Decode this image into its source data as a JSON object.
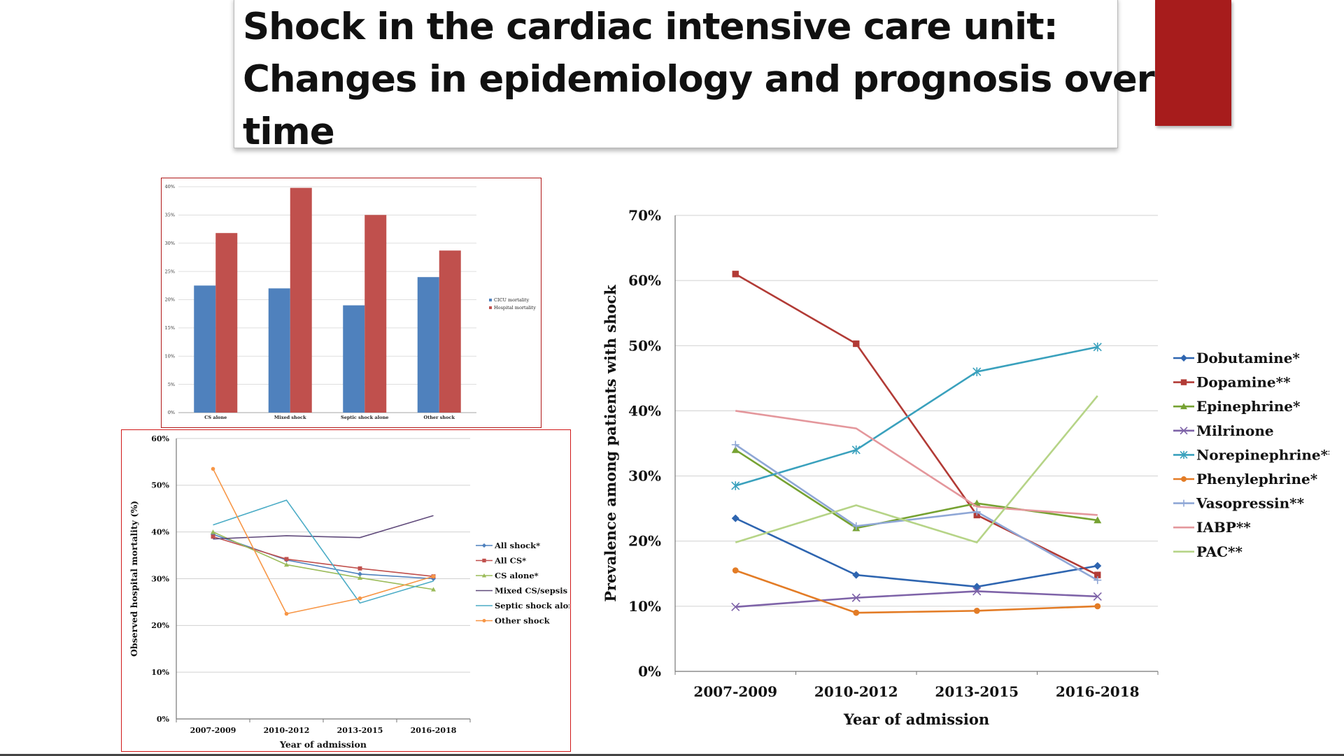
{
  "slide": {
    "title_lines": [
      "Shock in the cardiac intensive care unit:",
      "Changes in epidemiology and prognosis over",
      "time"
    ],
    "accent_color": "#a71c1c"
  },
  "chart_data": [
    {
      "id": "bar",
      "type": "bar",
      "categories": [
        "CS alone",
        "Mixed shock",
        "Septic shock alone",
        "Other shock"
      ],
      "series": [
        {
          "name": "CICU mortality",
          "color": "#4f81bd",
          "values": [
            22.5,
            22.0,
            19.0,
            24.0
          ]
        },
        {
          "name": "Hospital mortality",
          "color": "#c0504d",
          "values": [
            31.8,
            39.8,
            35.0,
            28.7
          ]
        }
      ],
      "ylim": [
        0,
        40
      ],
      "yticks": [
        "0%",
        "5%",
        "10%",
        "15%",
        "20%",
        "25%",
        "30%",
        "35%",
        "40%"
      ],
      "legend_position": "right",
      "grid": true
    },
    {
      "id": "mortality",
      "type": "line",
      "categories": [
        "2007-2009",
        "2010-2012",
        "2013-2015",
        "2016-2018"
      ],
      "xlabel": "Year of admission",
      "ylabel": "Observed hospital mortality (%)",
      "ylim": [
        0,
        60
      ],
      "yticks": [
        "0%",
        "10%",
        "20%",
        "30%",
        "40%",
        "50%",
        "60%"
      ],
      "legend_position": "right",
      "grid": true,
      "series": [
        {
          "name": "All shock*",
          "color": "#4f81bd",
          "marker": "diamond",
          "values": [
            39.5,
            34.0,
            31.0,
            30.0
          ]
        },
        {
          "name": "All CS*",
          "color": "#c0504d",
          "marker": "square",
          "values": [
            39.0,
            34.2,
            32.2,
            30.5
          ]
        },
        {
          "name": "CS alone*",
          "color": "#9bbb59",
          "marker": "triangle",
          "values": [
            40.0,
            33.0,
            30.2,
            27.7
          ]
        },
        {
          "name": "Mixed CS/sepsis",
          "color": "#604a7b",
          "marker": "none",
          "values": [
            38.5,
            39.2,
            38.8,
            43.5
          ]
        },
        {
          "name": "Septic shock alone",
          "color": "#4bacc6",
          "marker": "none",
          "values": [
            41.5,
            46.8,
            24.8,
            29.5
          ]
        },
        {
          "name": "Other shock",
          "color": "#f79646",
          "marker": "circle",
          "values": [
            53.5,
            22.5,
            25.8,
            30.5
          ]
        }
      ]
    },
    {
      "id": "prevalence",
      "type": "line",
      "categories": [
        "2007-2009",
        "2010-2012",
        "2013-2015",
        "2016-2018"
      ],
      "xlabel": "Year of admission",
      "ylabel": "Prevalence among patients with shock",
      "ylim": [
        0,
        70
      ],
      "yticks": [
        "0%",
        "10%",
        "20%",
        "30%",
        "40%",
        "50%",
        "60%",
        "70%"
      ],
      "legend_position": "right",
      "grid": true,
      "series": [
        {
          "name": "Dobutamine*",
          "color": "#2e65b0",
          "marker": "diamond",
          "values": [
            23.5,
            14.8,
            13.0,
            16.2
          ]
        },
        {
          "name": "Dopamine**",
          "color": "#b23b36",
          "marker": "square",
          "values": [
            61.0,
            50.3,
            24.0,
            14.8
          ]
        },
        {
          "name": "Epinephrine*",
          "color": "#76a232",
          "marker": "triangle",
          "values": [
            34.0,
            22.0,
            25.8,
            23.2
          ]
        },
        {
          "name": "Milrinone",
          "color": "#7e63a8",
          "marker": "x",
          "values": [
            9.9,
            11.3,
            12.3,
            11.5
          ]
        },
        {
          "name": "Norepinephrine**",
          "color": "#3aa1bd",
          "marker": "star",
          "values": [
            28.5,
            34.0,
            46.0,
            49.8
          ]
        },
        {
          "name": "Phenylephrine*",
          "color": "#e37c26",
          "marker": "circle",
          "values": [
            15.5,
            9.0,
            9.3,
            10.0
          ]
        },
        {
          "name": "Vasopressin**",
          "color": "#8fa7d6",
          "marker": "plus",
          "values": [
            34.8,
            22.3,
            24.5,
            14.0
          ]
        },
        {
          "name": "IABP**",
          "color": "#e4979c",
          "marker": "none",
          "values": [
            40.0,
            37.3,
            25.3,
            24.0
          ]
        },
        {
          "name": "PAC**",
          "color": "#b6d487",
          "marker": "none",
          "values": [
            19.8,
            25.5,
            19.8,
            42.3
          ]
        }
      ]
    }
  ]
}
